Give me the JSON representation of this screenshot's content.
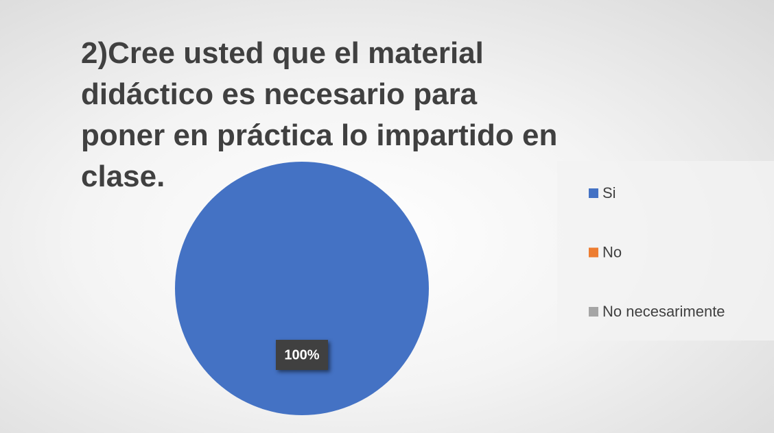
{
  "chart_data": {
    "type": "pie",
    "title": "2)Cree usted que el material didáctico es necesario para poner en práctica lo impartido en clase.",
    "categories": [
      "Si",
      "No",
      "No necesarimente"
    ],
    "values": [
      100,
      0,
      0
    ],
    "value_labels": [
      "100%",
      null,
      null
    ],
    "colors": [
      "#4472c4",
      "#ed7d31",
      "#a5a5a5"
    ],
    "legend": "right"
  }
}
